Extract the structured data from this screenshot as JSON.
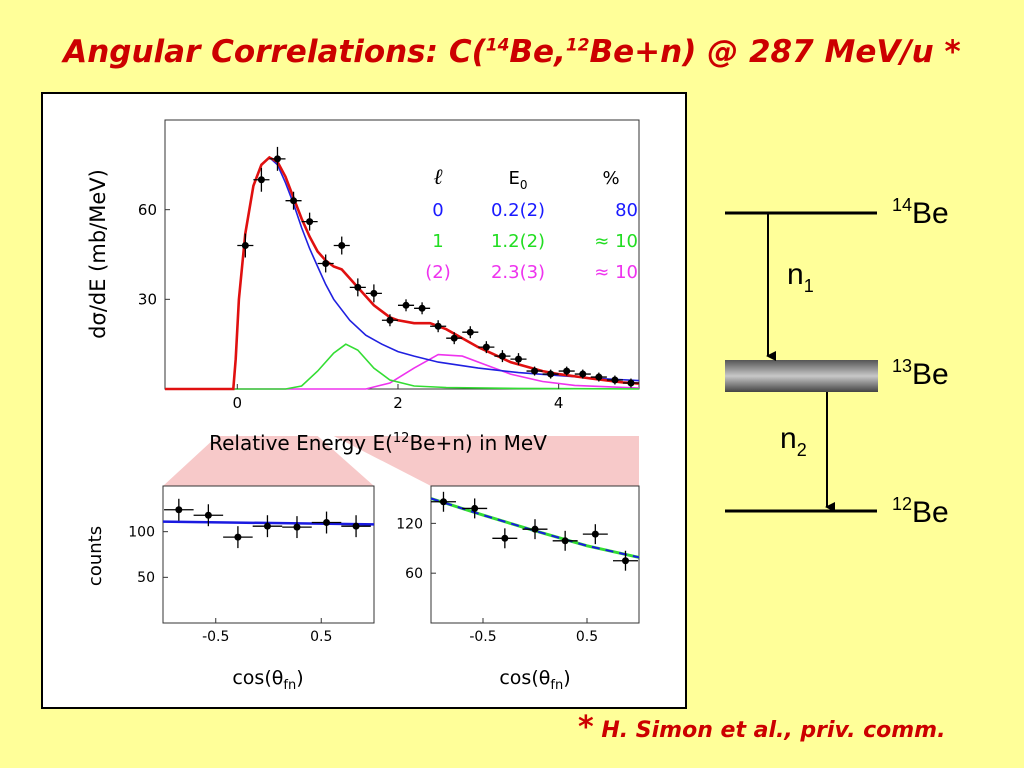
{
  "title": {
    "prefix": "Angular Correlations: C(",
    "sup1": "14",
    "mid": "Be,",
    "sup2": "12",
    "suffix": "Be+n)  @ 287 MeV/u *"
  },
  "footnote": {
    "star": "*",
    "text": " H. Simon et al.,  priv. comm."
  },
  "level_scheme": {
    "levels": [
      {
        "sup": "14",
        "name": "Be"
      },
      {
        "sup": "13",
        "name": "Be"
      },
      {
        "sup": "12",
        "name": "Be"
      }
    ],
    "transitions": [
      {
        "base": "n",
        "sub": "1"
      },
      {
        "base": "n",
        "sub": "2"
      }
    ]
  },
  "legend": {
    "headers": [
      "ℓ",
      "E",
      "0",
      "%"
    ],
    "rows": [
      {
        "l": "0",
        "e0": "0.2(2)",
        "pct": "80",
        "color": "#1a1aff"
      },
      {
        "l": "1",
        "e0": "1.2(2)",
        "pct": "≈ 10",
        "color": "#22dd22"
      },
      {
        "l": "(2)",
        "e0": "2.3(3)",
        "pct": "≈ 10",
        "color": "#ee33ee"
      }
    ]
  },
  "colors": {
    "total": "#e01010",
    "l0": "#2020e0",
    "l1": "#33dd33",
    "l2": "#ee33ee",
    "points": "#000000",
    "background": "#FFFF99",
    "title": "#CC0000"
  },
  "chart_data": [
    {
      "type": "line",
      "xlabel": "Relative Energy E(",
      "xlabel_sup": "12",
      "xlabel_end": "Be+n) in MeV",
      "ylabel": "dσ/dE (mb/MeV)",
      "xlim": [
        -0.9,
        5.0
      ],
      "ylim": [
        0,
        90
      ],
      "xticks": [
        "0",
        "2",
        "4"
      ],
      "xtick_values": [
        0,
        2,
        4
      ],
      "yticks": [
        "30",
        "60"
      ],
      "ytick_values": [
        30,
        60
      ],
      "points": [
        {
          "x": 0.1,
          "y": 48,
          "ex": 0.1,
          "ey": 4
        },
        {
          "x": 0.3,
          "y": 70,
          "ex": 0.1,
          "ey": 4
        },
        {
          "x": 0.5,
          "y": 77,
          "ex": 0.1,
          "ey": 4
        },
        {
          "x": 0.7,
          "y": 63,
          "ex": 0.1,
          "ey": 3
        },
        {
          "x": 0.9,
          "y": 56,
          "ex": 0.1,
          "ey": 3
        },
        {
          "x": 1.1,
          "y": 42,
          "ex": 0.1,
          "ey": 3
        },
        {
          "x": 1.3,
          "y": 48,
          "ex": 0.1,
          "ey": 3
        },
        {
          "x": 1.5,
          "y": 34,
          "ex": 0.1,
          "ey": 3
        },
        {
          "x": 1.7,
          "y": 32,
          "ex": 0.1,
          "ey": 3
        },
        {
          "x": 1.9,
          "y": 23,
          "ex": 0.1,
          "ey": 2
        },
        {
          "x": 2.1,
          "y": 28,
          "ex": 0.1,
          "ey": 2
        },
        {
          "x": 2.3,
          "y": 27,
          "ex": 0.1,
          "ey": 2
        },
        {
          "x": 2.5,
          "y": 21,
          "ex": 0.1,
          "ey": 2
        },
        {
          "x": 2.7,
          "y": 17,
          "ex": 0.1,
          "ey": 2
        },
        {
          "x": 2.9,
          "y": 19,
          "ex": 0.1,
          "ey": 2
        },
        {
          "x": 3.1,
          "y": 14,
          "ex": 0.1,
          "ey": 2
        },
        {
          "x": 3.3,
          "y": 11,
          "ex": 0.1,
          "ey": 2
        },
        {
          "x": 3.5,
          "y": 10,
          "ex": 0.1,
          "ey": 2
        },
        {
          "x": 3.7,
          "y": 6,
          "ex": 0.1,
          "ey": 1.5
        },
        {
          "x": 3.9,
          "y": 5,
          "ex": 0.1,
          "ey": 1.5
        },
        {
          "x": 4.1,
          "y": 6,
          "ex": 0.1,
          "ey": 1.5
        },
        {
          "x": 4.3,
          "y": 5,
          "ex": 0.1,
          "ey": 1.5
        },
        {
          "x": 4.5,
          "y": 4,
          "ex": 0.1,
          "ey": 1.5
        },
        {
          "x": 4.7,
          "y": 3,
          "ex": 0.1,
          "ey": 1.5
        },
        {
          "x": 4.9,
          "y": 2,
          "ex": 0.1,
          "ey": 1.5
        }
      ],
      "curves": {
        "total": [
          [
            -0.9,
            0
          ],
          [
            -0.05,
            0
          ],
          [
            -0.02,
            10
          ],
          [
            0.02,
            30
          ],
          [
            0.1,
            52
          ],
          [
            0.2,
            68
          ],
          [
            0.3,
            75
          ],
          [
            0.4,
            77.5
          ],
          [
            0.5,
            76
          ],
          [
            0.6,
            71
          ],
          [
            0.7,
            64
          ],
          [
            0.8,
            57
          ],
          [
            0.9,
            51
          ],
          [
            1.0,
            46
          ],
          [
            1.1,
            43
          ],
          [
            1.2,
            41
          ],
          [
            1.3,
            40
          ],
          [
            1.4,
            37
          ],
          [
            1.5,
            34
          ],
          [
            1.6,
            31
          ],
          [
            1.7,
            28
          ],
          [
            1.8,
            26
          ],
          [
            1.9,
            24
          ],
          [
            2.0,
            23
          ],
          [
            2.2,
            22
          ],
          [
            2.4,
            22
          ],
          [
            2.5,
            21
          ],
          [
            2.6,
            20
          ],
          [
            2.8,
            17
          ],
          [
            3.0,
            14
          ],
          [
            3.2,
            11.5
          ],
          [
            3.4,
            9
          ],
          [
            3.6,
            7.5
          ],
          [
            3.8,
            6
          ],
          [
            4.0,
            5
          ],
          [
            4.4,
            3.5
          ],
          [
            4.8,
            2.2
          ],
          [
            5.0,
            1.8
          ]
        ],
        "l0": [
          [
            -0.9,
            0
          ],
          [
            -0.05,
            0
          ],
          [
            -0.02,
            10
          ],
          [
            0.02,
            30
          ],
          [
            0.1,
            52
          ],
          [
            0.2,
            68
          ],
          [
            0.3,
            75
          ],
          [
            0.4,
            77.5
          ],
          [
            0.5,
            75
          ],
          [
            0.6,
            69
          ],
          [
            0.7,
            62
          ],
          [
            0.8,
            54
          ],
          [
            0.9,
            47
          ],
          [
            1.0,
            41
          ],
          [
            1.1,
            35
          ],
          [
            1.2,
            30
          ],
          [
            1.4,
            23
          ],
          [
            1.6,
            18
          ],
          [
            1.8,
            15
          ],
          [
            2.0,
            12.5
          ],
          [
            2.2,
            11
          ],
          [
            2.5,
            9
          ],
          [
            3.0,
            7
          ],
          [
            3.5,
            5.5
          ],
          [
            4.0,
            4.5
          ],
          [
            4.5,
            3.5
          ],
          [
            5.0,
            2.8
          ]
        ],
        "l1": [
          [
            -0.9,
            0
          ],
          [
            0.6,
            0
          ],
          [
            0.8,
            1
          ],
          [
            1.0,
            6
          ],
          [
            1.2,
            12
          ],
          [
            1.35,
            15
          ],
          [
            1.5,
            13
          ],
          [
            1.7,
            7
          ],
          [
            1.9,
            3
          ],
          [
            2.2,
            1
          ],
          [
            2.6,
            0.5
          ],
          [
            3.5,
            0.2
          ],
          [
            5.0,
            0
          ]
        ],
        "l2": [
          [
            -0.9,
            0
          ],
          [
            1.6,
            0
          ],
          [
            1.9,
            2
          ],
          [
            2.2,
            7
          ],
          [
            2.5,
            11.5
          ],
          [
            2.8,
            11
          ],
          [
            3.1,
            8
          ],
          [
            3.4,
            5
          ],
          [
            3.8,
            2.5
          ],
          [
            4.2,
            1.2
          ],
          [
            5.0,
            0.3
          ]
        ]
      }
    },
    {
      "type": "scatter",
      "xlabel": "cos(θ",
      "xlabel_sub": "fn",
      "xlabel_end": ")",
      "ylabel": "counts",
      "xlim": [
        -1,
        1
      ],
      "ylim": [
        0,
        150
      ],
      "xticks": [
        "-0.5",
        "0.5"
      ],
      "xtick_values": [
        -0.5,
        0.5
      ],
      "yticks": [
        "50",
        "100"
      ],
      "ytick_values": [
        50,
        100
      ],
      "points": [
        {
          "x": -0.85,
          "y": 124,
          "ex": 0.14,
          "ey": 12
        },
        {
          "x": -0.57,
          "y": 118,
          "ex": 0.14,
          "ey": 12
        },
        {
          "x": -0.29,
          "y": 94,
          "ex": 0.14,
          "ey": 12
        },
        {
          "x": -0.01,
          "y": 106,
          "ex": 0.14,
          "ey": 12
        },
        {
          "x": 0.27,
          "y": 105,
          "ex": 0.14,
          "ey": 12
        },
        {
          "x": 0.55,
          "y": 110,
          "ex": 0.14,
          "ey": 12
        },
        {
          "x": 0.83,
          "y": 106,
          "ex": 0.14,
          "ey": 12
        }
      ],
      "fit": [
        [
          -1,
          111
        ],
        [
          1,
          108
        ]
      ]
    },
    {
      "type": "scatter",
      "xlabel": "cos(θ",
      "xlabel_sub": "fn",
      "xlabel_end": ")",
      "ylabel": "",
      "xlim": [
        -1,
        1
      ],
      "ylim": [
        0,
        165
      ],
      "xticks": [
        "-0.5",
        "0.5"
      ],
      "xtick_values": [
        -0.5,
        0.5
      ],
      "yticks": [
        "60",
        "120"
      ],
      "ytick_values": [
        60,
        120
      ],
      "points": [
        {
          "x": -0.88,
          "y": 146,
          "ex": 0.12,
          "ey": 12
        },
        {
          "x": -0.58,
          "y": 138,
          "ex": 0.12,
          "ey": 12
        },
        {
          "x": -0.29,
          "y": 102,
          "ex": 0.12,
          "ey": 12
        },
        {
          "x": 0.0,
          "y": 113,
          "ex": 0.12,
          "ey": 12
        },
        {
          "x": 0.29,
          "y": 99,
          "ex": 0.12,
          "ey": 12
        },
        {
          "x": 0.58,
          "y": 107,
          "ex": 0.12,
          "ey": 12
        },
        {
          "x": 0.87,
          "y": 75,
          "ex": 0.12,
          "ey": 12
        }
      ],
      "fit": [
        [
          -1,
          150
        ],
        [
          -0.5,
          130
        ],
        [
          0,
          111
        ],
        [
          0.5,
          93
        ],
        [
          1,
          79
        ]
      ]
    }
  ]
}
